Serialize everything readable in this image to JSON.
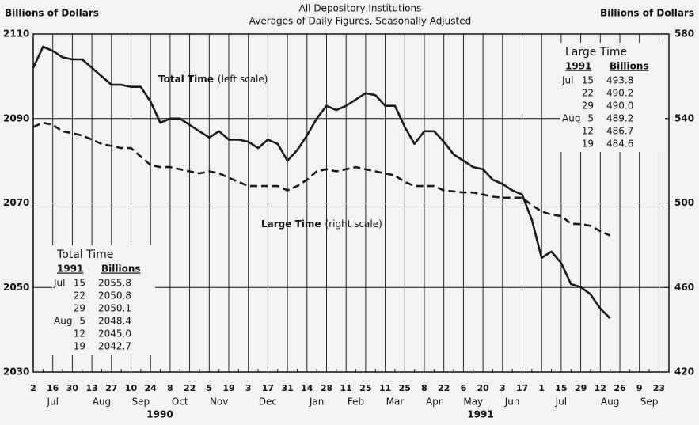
{
  "chart_data": {
    "type": "line",
    "subtitle": [
      "All Depository Institutions",
      "Averages of Daily Figures, Seasonally Adjusted"
    ],
    "ylabel": "Billions of Dollars",
    "y2label": "Billions of Dollars",
    "categories": [
      "2",
      null,
      "16",
      null,
      "30",
      null,
      "13",
      null,
      "27",
      null,
      "10",
      null,
      "24",
      null,
      "8",
      null,
      "22",
      null,
      "5",
      null,
      "19",
      null,
      "3",
      null,
      "17",
      null,
      "31",
      null,
      "14",
      null,
      "28",
      null,
      "11",
      null,
      "25",
      null,
      "11",
      null,
      "25",
      null,
      "8",
      null,
      "22",
      null,
      "6",
      null,
      "20",
      null,
      "3",
      null,
      "17",
      null,
      "1",
      null,
      "15",
      null,
      "29",
      null,
      "12",
      null,
      "26",
      null,
      "9",
      null,
      "23"
    ],
    "months": [
      "Jul",
      "Aug",
      "Sep",
      "Oct",
      "Nov",
      "Dec",
      "Jan",
      "Feb",
      "Mar",
      "Apr",
      "May",
      "Jun",
      "Jul",
      "Aug",
      "Sep"
    ],
    "years": [
      "1990",
      "1991"
    ],
    "ylim": [
      2030,
      2110
    ],
    "yticks": [
      2030,
      2050,
      2070,
      2090,
      2110
    ],
    "y2lim": [
      420,
      580
    ],
    "y2ticks": [
      420,
      460,
      500,
      540,
      580
    ],
    "grid": true,
    "series": [
      {
        "name": "Total Time",
        "scale_note": "(left scale)",
        "color": "#1a1a1a",
        "dash": false,
        "values": [
          2102,
          2107,
          2106,
          2104.5,
          2104,
          2104,
          2102,
          2100,
          2098,
          2098,
          2097.5,
          2097.5,
          2094,
          2089,
          2090,
          2090,
          2088.5,
          2087,
          2085.5,
          2087,
          2085,
          2085,
          2084.5,
          2083,
          2085,
          2084,
          2080,
          2082.5,
          2086,
          2090,
          2093,
          2092,
          2093,
          2094.5,
          2096,
          2095.5,
          2093,
          2093,
          2088,
          2084,
          2087,
          2087,
          2084.5,
          2081.5,
          2080,
          2078.5,
          2078,
          2075.5,
          2074.5,
          2073,
          2072,
          2066,
          2057,
          2058.5,
          2055.8,
          2050.8,
          2050.1,
          2048.4,
          2045.0,
          2042.7,
          null,
          null,
          null,
          null,
          null
        ]
      },
      {
        "name": "Large Time",
        "scale_note": "(right scale)",
        "color": "#1a1a1a",
        "dash": true,
        "axis": "y2",
        "values": [
          536,
          538,
          537,
          534,
          533,
          532,
          530,
          528,
          527,
          526,
          526,
          522,
          518,
          517,
          517,
          516,
          515,
          514,
          515,
          514,
          512,
          510,
          508,
          508,
          508,
          508,
          506,
          508,
          511,
          515,
          516,
          515,
          516,
          517,
          516,
          515,
          514,
          513,
          510,
          508,
          508,
          508,
          506,
          505.5,
          505,
          505,
          504,
          503,
          502.5,
          502.5,
          502.5,
          499,
          496,
          494.5,
          493.8,
          490.2,
          490.0,
          489.2,
          486.7,
          484.6,
          null,
          null,
          null,
          null,
          null
        ]
      }
    ],
    "tables": [
      {
        "title": "Large Time",
        "header": [
          "1991",
          "Billions"
        ],
        "rows": [
          [
            "Jul",
            "15",
            "493.8"
          ],
          [
            null,
            "22",
            "490.2"
          ],
          [
            null,
            "29",
            "490.0"
          ],
          [
            "Aug",
            "5",
            "489.2"
          ],
          [
            null,
            "12",
            "486.7"
          ],
          [
            null,
            "19",
            "484.6"
          ]
        ]
      },
      {
        "title": "Total Time",
        "header": [
          "1991",
          "Billions"
        ],
        "rows": [
          [
            "Jul",
            "15",
            "2055.8"
          ],
          [
            null,
            "22",
            "2050.8"
          ],
          [
            null,
            "29",
            "2050.1"
          ],
          [
            "Aug",
            "5",
            "2048.4"
          ],
          [
            null,
            "12",
            "2045.0"
          ],
          [
            null,
            "19",
            "2042.7"
          ]
        ]
      }
    ]
  }
}
